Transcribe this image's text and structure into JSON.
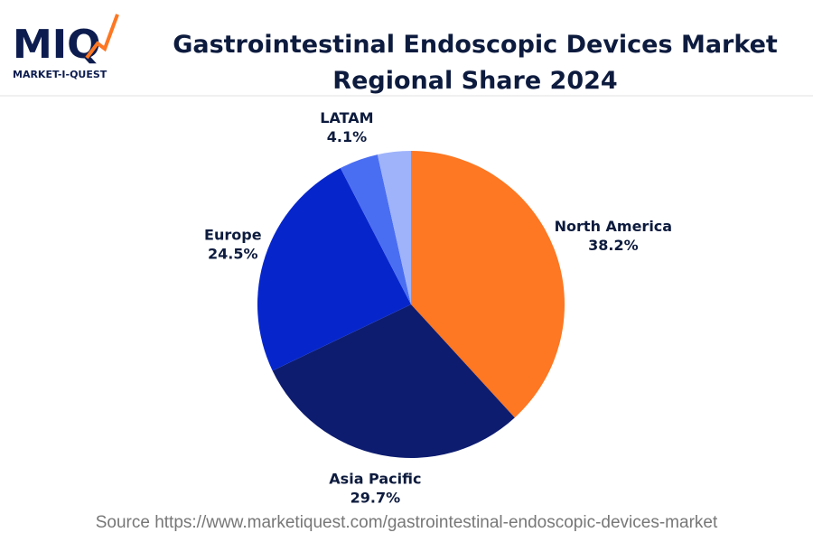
{
  "logo": {
    "mark": "MIQ",
    "name": "MARKET-I-QUEST"
  },
  "chart_data": {
    "type": "pie",
    "title": "Gastrointestinal Endoscopic Devices Market Regional Share 2024",
    "categories": [
      "North America",
      "Asia Pacific",
      "Europe",
      "LATAM",
      null
    ],
    "values": [
      38.2,
      29.7,
      24.5,
      4.1,
      3.5
    ],
    "value_labels": [
      "38.2%",
      "29.7%",
      "24.5%",
      "4.1%",
      null
    ],
    "colors": [
      "#fe7722",
      "#0d1c6f",
      "#0626cc",
      "#4a6ef2",
      "#9fb3fb"
    ]
  },
  "source": "Source https://www.marketiquest.com/gastrointestinal-endoscopic-devices-market"
}
